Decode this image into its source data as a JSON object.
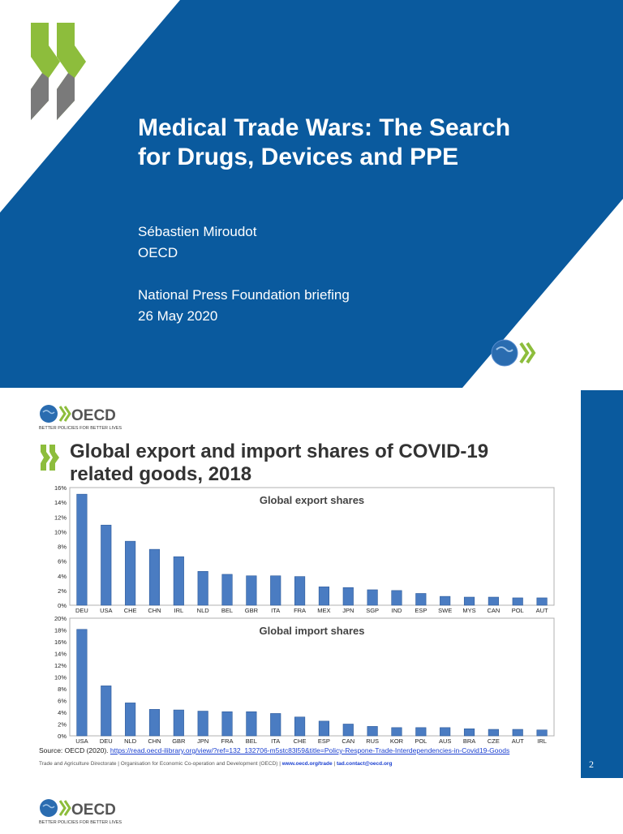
{
  "slide1": {
    "title_line1": "Medical Trade Wars: The Search",
    "title_line2": "for Drugs, Devices and PPE",
    "author": "Sébastien Miroudot",
    "org": "OECD",
    "event": "National Press Foundation briefing",
    "date": "26 May 2020",
    "logo_text": "OECD",
    "logo_tagline": "BETTER POLICIES FOR BETTER LIVES"
  },
  "slide2": {
    "title_line1": "Global export and import shares of COVID-19",
    "title_line2": "related goods, 2018",
    "logo_text": "OECD",
    "logo_tagline": "BETTER POLICIES FOR BETTER LIVES",
    "source_prefix": "Source: OECD (2020). ",
    "source_link": "https://read.oecd-ilibrary.org/view/?ref=132_132706-m5stc83l59&title=Policy-Respone-Trade-Interdependencies-in-Covid19-Goods",
    "footer_text": "Trade and Agriculture Directorate | Organisation for Economic Co-operation and Development (OECD) | ",
    "footer_web": "www.oecd.org/trade",
    "footer_sep": " | ",
    "footer_mail": "tad.contact@oecd.org",
    "page_number": "2"
  },
  "slide3": {
    "logo_text": "OECD",
    "logo_tagline": "BETTER POLICIES FOR BETTER LIVES"
  },
  "colors": {
    "brand_blue": "#0a5a9e",
    "bar_blue": "#4a7cc2",
    "chevron_green": "#8dbd3c"
  },
  "chart_data": [
    {
      "type": "bar",
      "title": "Global export shares",
      "categories": [
        "DEU",
        "USA",
        "CHE",
        "CHN",
        "IRL",
        "NLD",
        "BEL",
        "GBR",
        "ITA",
        "FRA",
        "MEX",
        "JPN",
        "SGP",
        "IND",
        "ESP",
        "SWE",
        "MYS",
        "CAN",
        "POL",
        "AUT"
      ],
      "values": [
        15.1,
        10.9,
        8.7,
        7.6,
        6.6,
        4.6,
        4.2,
        4.0,
        4.0,
        3.9,
        2.5,
        2.4,
        2.1,
        2.0,
        1.6,
        1.2,
        1.1,
        1.1,
        1.0,
        1.0
      ],
      "ylim": [
        0,
        16
      ],
      "yticks": [
        "0%",
        "2%",
        "4%",
        "6%",
        "8%",
        "10%",
        "12%",
        "14%",
        "16%"
      ],
      "ytick_values": [
        0,
        2,
        4,
        6,
        8,
        10,
        12,
        14,
        16
      ]
    },
    {
      "type": "bar",
      "title": "Global import shares",
      "categories": [
        "USA",
        "DEU",
        "NLD",
        "CHN",
        "GBR",
        "JPN",
        "FRA",
        "BEL",
        "ITA",
        "CHE",
        "ESP",
        "CAN",
        "RUS",
        "KOR",
        "POL",
        "AUS",
        "BRA",
        "CZE",
        "AUT",
        "IRL"
      ],
      "values": [
        18.1,
        8.5,
        5.6,
        4.5,
        4.4,
        4.2,
        4.1,
        4.1,
        3.8,
        3.2,
        2.5,
        2.0,
        1.6,
        1.4,
        1.4,
        1.4,
        1.2,
        1.1,
        1.1,
        1.0
      ],
      "ylim": [
        0,
        20
      ],
      "yticks": [
        "0%",
        "2%",
        "4%",
        "6%",
        "8%",
        "10%",
        "12%",
        "14%",
        "16%",
        "18%",
        "20%"
      ],
      "ytick_values": [
        0,
        2,
        4,
        6,
        8,
        10,
        12,
        14,
        16,
        18,
        20
      ]
    }
  ]
}
